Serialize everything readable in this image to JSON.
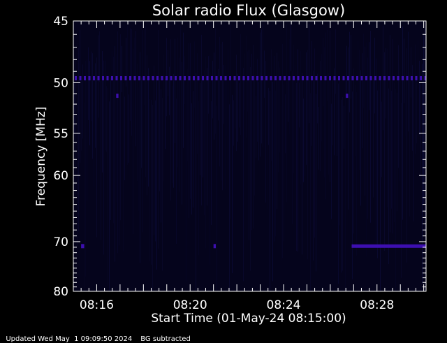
{
  "chart_data": {
    "type": "heatmap",
    "title": "Solar radio Flux (Glasgow)",
    "xlabel": "Start Time (01-May-24 08:15:00)",
    "ylabel": "Frequency [MHz]",
    "x_start_minutes": 8.25,
    "xlim": [
      "08:15:00",
      "08:30:06"
    ],
    "ylim": [
      45,
      80
    ],
    "y_scale": "reciprocal",
    "x_ticks": [
      "08:16",
      "08:20",
      "08:24",
      "08:28"
    ],
    "y_ticks": [
      45,
      50,
      55,
      60,
      70,
      80
    ],
    "background_color": "#05041c",
    "emission_color": "#3d0fb0",
    "emission_features": [
      {
        "freq": 49.6,
        "from": "08:15:00",
        "to": "08:30:06",
        "intensity": "dashed"
      },
      {
        "freq": 51.2,
        "from": "08:16:50",
        "to": "08:16:56",
        "intensity": "spot"
      },
      {
        "freq": 51.2,
        "from": "08:26:40",
        "to": "08:26:46",
        "intensity": "spot"
      },
      {
        "freq": 70.8,
        "from": "08:15:20",
        "to": "08:15:28",
        "intensity": "spot"
      },
      {
        "freq": 70.8,
        "from": "08:21:00",
        "to": "08:21:06",
        "intensity": "spot"
      },
      {
        "freq": 70.8,
        "from": "08:26:55",
        "to": "08:30:06",
        "intensity": "band"
      }
    ]
  },
  "footer": {
    "updated": "Updated Wed May  1 09:09:50 2024",
    "note": "BG subtracted"
  }
}
